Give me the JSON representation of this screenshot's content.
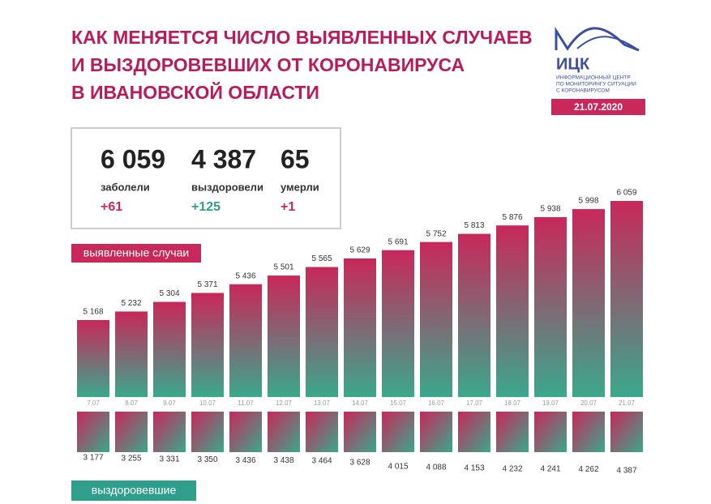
{
  "header": {
    "title_lines": [
      "КАК МЕНЯЕТСЯ ЧИСЛО ВЫЯВЛЕННЫХ СЛУЧАЕВ",
      "И ВЫЗДОРОВЕВШИХ ОТ КОРОНАВИРУСА",
      "В ИВАНОВСКОЙ ОБЛАСТИ"
    ]
  },
  "logo": {
    "name": "ИЦК",
    "lines": [
      "ИНФОРМАЦИОННЫЙ ЦЕНТР",
      "ПО МОНИТОРИНГУ СИТУАЦИИ",
      "С КОРОНАВИРУСОМ"
    ],
    "date": "21.07.2020"
  },
  "summary": [
    {
      "total": "6 059",
      "label": "заболели",
      "delta": "+61"
    },
    {
      "total": "4 387",
      "label": "выздоровели",
      "delta": "+125"
    },
    {
      "total": "65",
      "label": "умерли",
      "delta": "+1"
    }
  ],
  "chart_data": {
    "type": "bar",
    "categories": [
      "7.07",
      "8.07",
      "9.07",
      "10.07",
      "11.07",
      "12.07",
      "13.07",
      "14.07",
      "15.07",
      "16.07",
      "17.07",
      "18.07",
      "19.07",
      "20.07",
      "21.07"
    ],
    "series": [
      {
        "name": "выявленные случаи",
        "color": "#c8285a",
        "values": [
          5168,
          5232,
          5304,
          5371,
          5436,
          5501,
          5565,
          5629,
          5691,
          5752,
          5813,
          5876,
          5938,
          5998,
          6059
        ],
        "value_labels": [
          "5 168",
          "5 232",
          "5 304",
          "5 371",
          "5 436",
          "5 501",
          "5 565",
          "5 629",
          "5 691",
          "5 752",
          "5 813",
          "5 876",
          "5 938",
          "5 998",
          "6 059"
        ]
      },
      {
        "name": "выздоровевшие",
        "color": "#2f9e8a",
        "values": [
          3177,
          3255,
          3331,
          3350,
          3436,
          3438,
          3464,
          3628,
          4015,
          4088,
          4153,
          4232,
          4241,
          4262,
          4387
        ],
        "value_labels": [
          "3 177",
          "3 255",
          "3 331",
          "3 350",
          "3 436",
          "3 438",
          "3 464",
          "3 628",
          "4 015",
          "4 088",
          "4 153",
          "4 232",
          "4 241",
          "4 262",
          "4 387"
        ]
      }
    ]
  }
}
